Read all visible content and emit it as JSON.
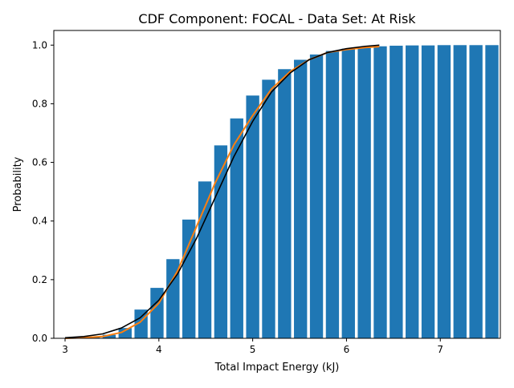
{
  "chart_data": {
    "type": "bar",
    "title": "CDF Component: FOCAL - Data Set: At Risk",
    "xlabel": "Total Impact Energy (kJ)",
    "ylabel": "Probability",
    "xlim": [
      2.88,
      7.64
    ],
    "ylim": [
      0.0,
      1.05
    ],
    "xticks": [
      3,
      4,
      5,
      6,
      7
    ],
    "yticks": [
      0.0,
      0.2,
      0.4,
      0.6,
      0.8,
      1.0
    ],
    "grid": false,
    "bar_width": 0.14,
    "bars": {
      "x": [
        3.13,
        3.3,
        3.47,
        3.64,
        3.81,
        3.98,
        4.15,
        4.32,
        4.49,
        4.66,
        4.83,
        5.0,
        5.17,
        5.34,
        5.51,
        5.68,
        5.85,
        6.02,
        6.19,
        6.36,
        6.53,
        6.7,
        6.87,
        7.04,
        7.21,
        7.38,
        7.55
      ],
      "values": [
        0.002,
        0.004,
        0.012,
        0.035,
        0.098,
        0.172,
        0.27,
        0.405,
        0.535,
        0.658,
        0.75,
        0.828,
        0.882,
        0.918,
        0.95,
        0.968,
        0.98,
        0.988,
        0.993,
        0.996,
        0.998,
        0.999,
        0.999,
        1.0,
        1.0,
        1.0,
        1.0
      ],
      "color": "#1f77b4"
    },
    "series": [
      {
        "color": "#ff7f0e",
        "x": [
          3.0,
          3.2,
          3.4,
          3.6,
          3.8,
          4.0,
          4.2,
          4.4,
          4.6,
          4.8,
          5.0,
          5.2,
          5.4,
          5.6,
          5.8,
          6.0,
          6.2,
          6.35
        ],
        "values": [
          0.0,
          0.002,
          0.006,
          0.02,
          0.055,
          0.12,
          0.23,
          0.38,
          0.53,
          0.66,
          0.76,
          0.85,
          0.91,
          0.95,
          0.975,
          0.985,
          0.992,
          0.995
        ]
      },
      {
        "color": "#000000",
        "x": [
          3.0,
          3.2,
          3.4,
          3.6,
          3.8,
          4.0,
          4.2,
          4.4,
          4.6,
          4.8,
          5.0,
          5.2,
          5.4,
          5.6,
          5.8,
          6.0,
          6.2,
          6.35
        ],
        "values": [
          0.002,
          0.006,
          0.015,
          0.035,
          0.07,
          0.13,
          0.22,
          0.34,
          0.48,
          0.62,
          0.74,
          0.84,
          0.905,
          0.95,
          0.975,
          0.988,
          0.996,
          1.0
        ]
      }
    ]
  }
}
